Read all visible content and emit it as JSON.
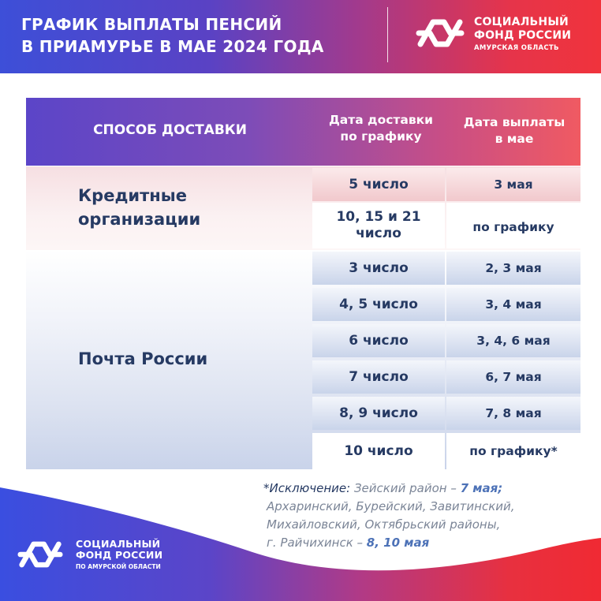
{
  "header": {
    "title_line1": "ГРАФИК ВЫПЛАТЫ ПЕНСИЙ",
    "title_line2": "В ПРИАМУРЬЕ  В МАЕ 2024 ГОДА",
    "brand_line1": "СОЦИАЛЬНЫЙ",
    "brand_line2": "ФОНД РОССИИ",
    "brand_line3": "АМУРСКАЯ ОБЛАСТЬ"
  },
  "table": {
    "col_method": "СПОСОБ ДОСТАВКИ",
    "col_delivery_line1": "Дата доставки",
    "col_delivery_line2": "по графику",
    "col_payment_line1": "Дата выплаты",
    "col_payment_line2": "в мае",
    "groups": [
      {
        "label_line1": "Кредитные",
        "label_line2": "организации",
        "rows": [
          {
            "delivery": "5 число",
            "payment": "3 мая"
          },
          {
            "delivery_line1": "10, 15 и 21",
            "delivery_line2": "число",
            "payment": "по графику"
          }
        ]
      },
      {
        "label": "Почта России",
        "rows": [
          {
            "delivery": "3 число",
            "payment": "2, 3 мая"
          },
          {
            "delivery": "4, 5 число",
            "payment": "3, 4 мая"
          },
          {
            "delivery": "6 число",
            "payment": "3, 4, 6 мая"
          },
          {
            "delivery": "7 число",
            "payment": "6, 7 мая"
          },
          {
            "delivery": "8, 9 число",
            "payment": "7, 8 мая"
          },
          {
            "delivery": "10 число",
            "payment": "по графику*"
          }
        ]
      }
    ]
  },
  "note": {
    "lead": "*Исключение:",
    "line1_text": " Зейский район – ",
    "line1_highlight": "7 мая;",
    "line2": "Архаринский, Бурейский, Завитинский,",
    "line3": "Михайловский, Октябрьский районы,",
    "line4_text": "г. Райчихинск – ",
    "line4_highlight": "8, 10 мая"
  },
  "footer": {
    "brand_line1": "СОЦИАЛЬНЫЙ",
    "brand_line2": "ФОНД РОССИИ",
    "brand_line3": "ПО АМУРСКОЙ ОБЛАСТИ"
  },
  "colors": {
    "header_gradient_start": "#3d4fd8",
    "header_gradient_end": "#f0333c",
    "text_dark_blue": "#263a63",
    "highlight_blue": "#4d72b7"
  }
}
